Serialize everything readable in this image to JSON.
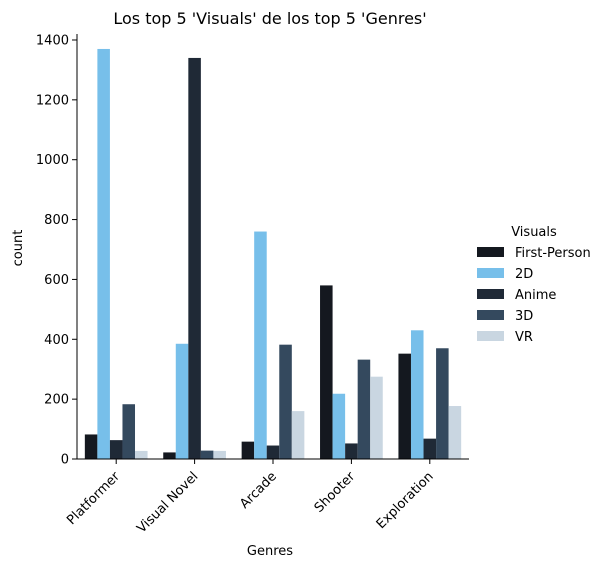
{
  "chart_data": {
    "type": "bar",
    "title": "Los top 5 'Visuals' de los top 5 'Genres'",
    "xlabel": "Genres",
    "ylabel": "count",
    "ylim": [
      0,
      1420
    ],
    "yticks": [
      0,
      200,
      400,
      600,
      800,
      1000,
      1200,
      1400
    ],
    "categories": [
      "Platformer",
      "Visual Novel",
      "Arcade",
      "Shooter",
      "Exploration"
    ],
    "legend": {
      "title": "Visuals",
      "placement": "right"
    },
    "grid": false,
    "series": [
      {
        "name": "First-Person",
        "color": "#14181f",
        "values": [
          82,
          22,
          58,
          580,
          352
        ]
      },
      {
        "name": "2D",
        "color": "#77bfea",
        "values": [
          1370,
          385,
          760,
          218,
          430
        ]
      },
      {
        "name": "Anime",
        "color": "#1f2936",
        "values": [
          63,
          1340,
          45,
          52,
          68
        ]
      },
      {
        "name": "3D",
        "color": "#34495e",
        "values": [
          183,
          28,
          382,
          332,
          370
        ]
      },
      {
        "name": "VR",
        "color": "#c9d6e1",
        "values": [
          27,
          27,
          160,
          275,
          177
        ]
      }
    ]
  }
}
